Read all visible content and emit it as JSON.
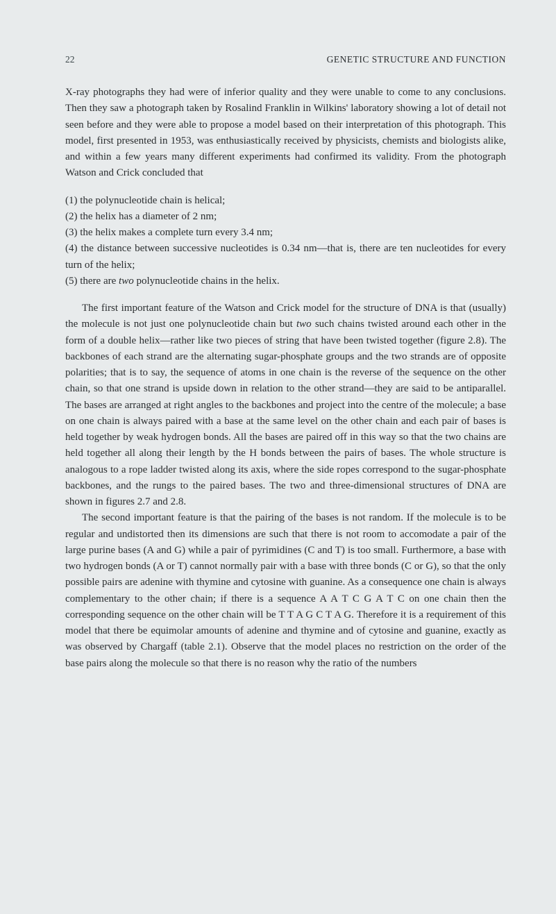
{
  "header": {
    "page_number": "22",
    "chapter_title": "GENETIC STRUCTURE AND FUNCTION"
  },
  "paragraph1": "X-ray photographs they had were of inferior quality and they were unable to come to any conclusions. Then they saw a photograph taken by Rosalind Franklin in Wilkins' laboratory showing a lot of detail not seen before and they were able to propose a model based on their interpretation of this photograph. This model, first presented in 1953, was enthusiastically received by physicists, chemists and biologists alike, and within a few years many different experiments had confirmed its validity. From the photograph Watson and Crick concluded that",
  "list": {
    "item1": "(1) the polynucleotide chain is helical;",
    "item2": "(2) the helix has a diameter of 2 nm;",
    "item3": "(3) the helix makes a complete turn every 3.4 nm;",
    "item4": "(4) the distance between successive nucleotides is 0.34 nm—that is, there are ten nucleotides for every turn of the helix;",
    "item5_pre": "(5) there are ",
    "item5_italic": "two",
    "item5_post": " polynucleotide chains in the helix."
  },
  "paragraph2": {
    "pre1": "The first important feature of the Watson and Crick model for the structure of DNA is that (usually) the molecule is not just one polynucleotide chain but ",
    "italic1": "two",
    "post1": " such chains twisted around each other in the form of a double helix—rather like two pieces of string that have been twisted together (figure 2.8). The backbones of each strand are the alternating sugar-phosphate groups and the two strands are of opposite polarities; that is to say, the sequence of atoms in one chain is the reverse of the sequence on the other chain, so that one strand is upside down in relation to the other strand—they are said to be antiparallel. The bases are arranged at right angles to the backbones and project into the centre of the molecule; a base on one chain is always paired with a base at the same level on the other chain and each pair of bases is held together by weak hydrogen bonds. All the bases are paired off in this way so that the two chains are held together all along their length by the H bonds between the pairs of bases. The whole structure is analogous to a rope ladder twisted along its axis, where the side ropes correspond to the sugar-phosphate backbones, and the rungs to the paired bases. The two and three-dimensional structures of DNA are shown in figures 2.7 and 2.8."
  },
  "paragraph3": {
    "pre1": "The second important feature is that the pairing of the bases is not random. If the molecule is to be regular and undistorted then its dimensions are such that there is not room to accomodate a pair of the large purine bases (A and G) while a pair of pyrimidines (C and T) is too small. Furthermore, a base with two hydrogen bonds (A or T) cannot normally pair with a base with three bonds (C or G), so that the only possible pairs are adenine with thymine and cytosine with guanine. As a consequence one chain is always complementary to the other chain; if there is a sequence ",
    "seq1": "A A T C G A T C",
    "mid1": " on one chain then the corresponding sequence on the other chain will be ",
    "seq2": "T T A G C T A G.",
    "post1": " Therefore it is a requirement of this model that there be equimolar amounts of adenine and thymine and of cytosine and guanine, exactly as was observed by Chargaff (table 2.1). Observe that the model places no restriction on the order of the base pairs along the molecule so that there is no reason why the ratio of the numbers"
  }
}
